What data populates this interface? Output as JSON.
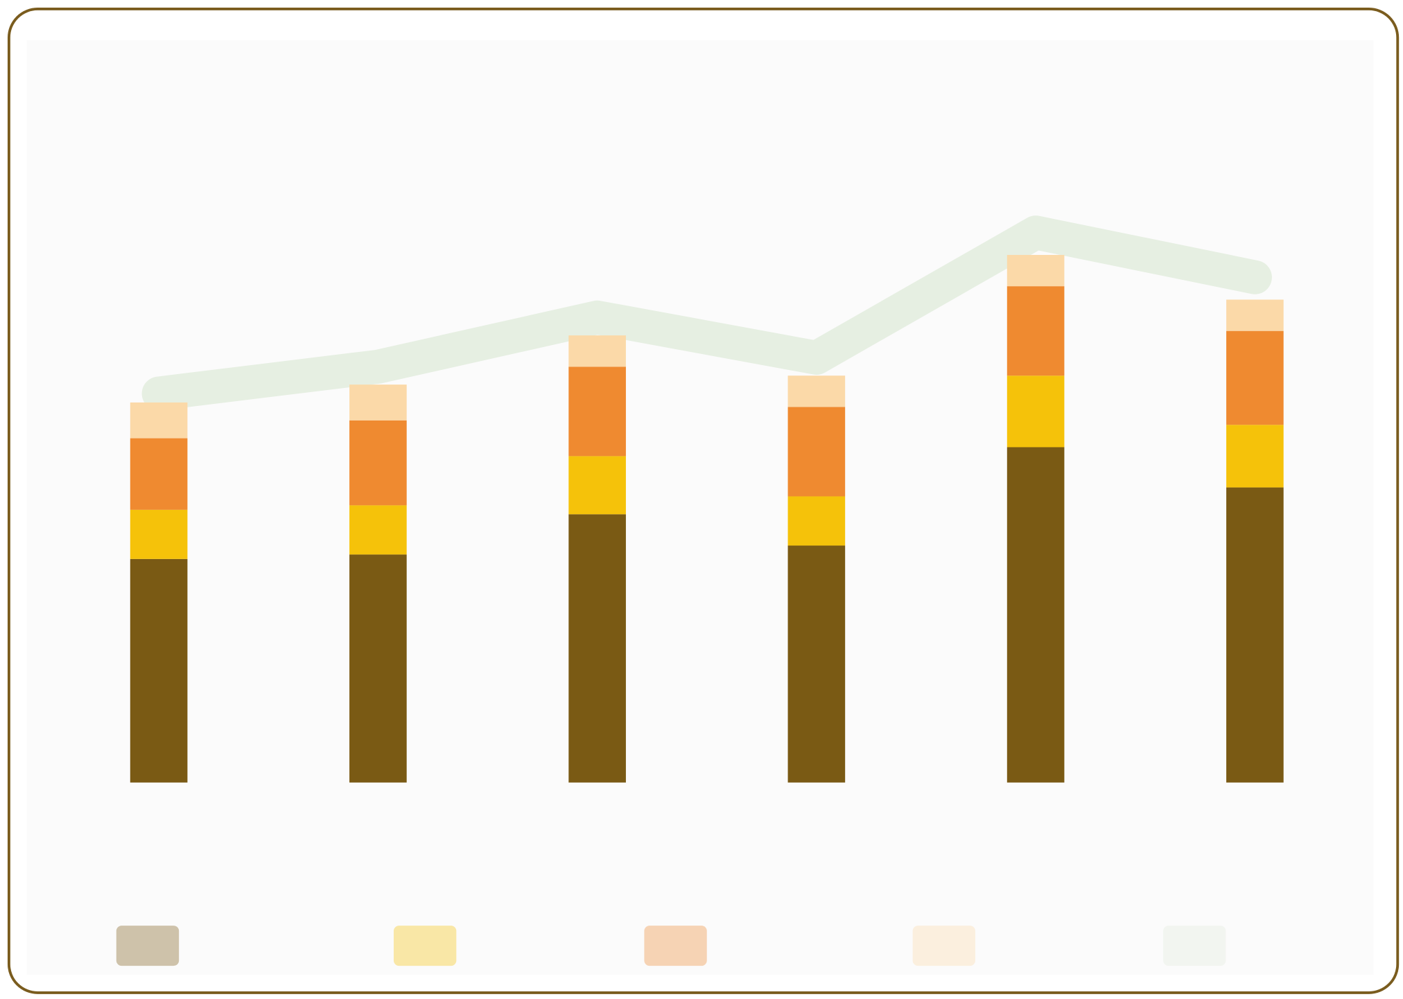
{
  "chart_data": {
    "type": "bar",
    "stacked": true,
    "ylim": [
      0,
      800
    ],
    "series": [
      {
        "color": "#7a5a14",
        "values": [
          250,
          255,
          300,
          265,
          375,
          330
        ]
      },
      {
        "color": "#f5c20a",
        "values": [
          55,
          55,
          65,
          55,
          80,
          70
        ]
      },
      {
        "color": "#ef8a30",
        "values": [
          80,
          95,
          100,
          100,
          100,
          105
        ]
      },
      {
        "color": "#fbd9a8",
        "values": [
          40,
          40,
          35,
          35,
          35,
          35
        ]
      },
      {
        "type": "line",
        "color": "#e2ecdd",
        "values": [
          435,
          465,
          520,
          475,
          615,
          565
        ]
      }
    ]
  }
}
